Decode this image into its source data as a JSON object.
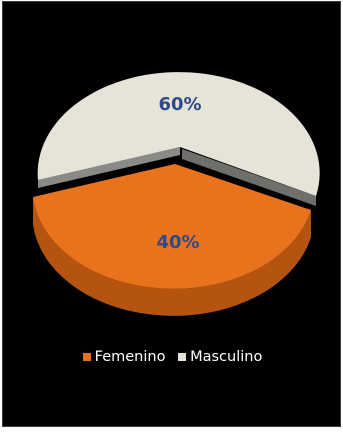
{
  "chart_data": {
    "type": "pie",
    "style": "3d",
    "categories": [
      "Femenino",
      "Masculino"
    ],
    "values": [
      40,
      60
    ],
    "data_labels": [
      "40%",
      "60%"
    ],
    "colors": [
      "#e8731c",
      "#e6e3d8"
    ],
    "side_colors": [
      "#b55410",
      "#6f6f6b"
    ],
    "label_color": "#2f4a88",
    "legend_position": "bottom",
    "background": "#000000"
  }
}
